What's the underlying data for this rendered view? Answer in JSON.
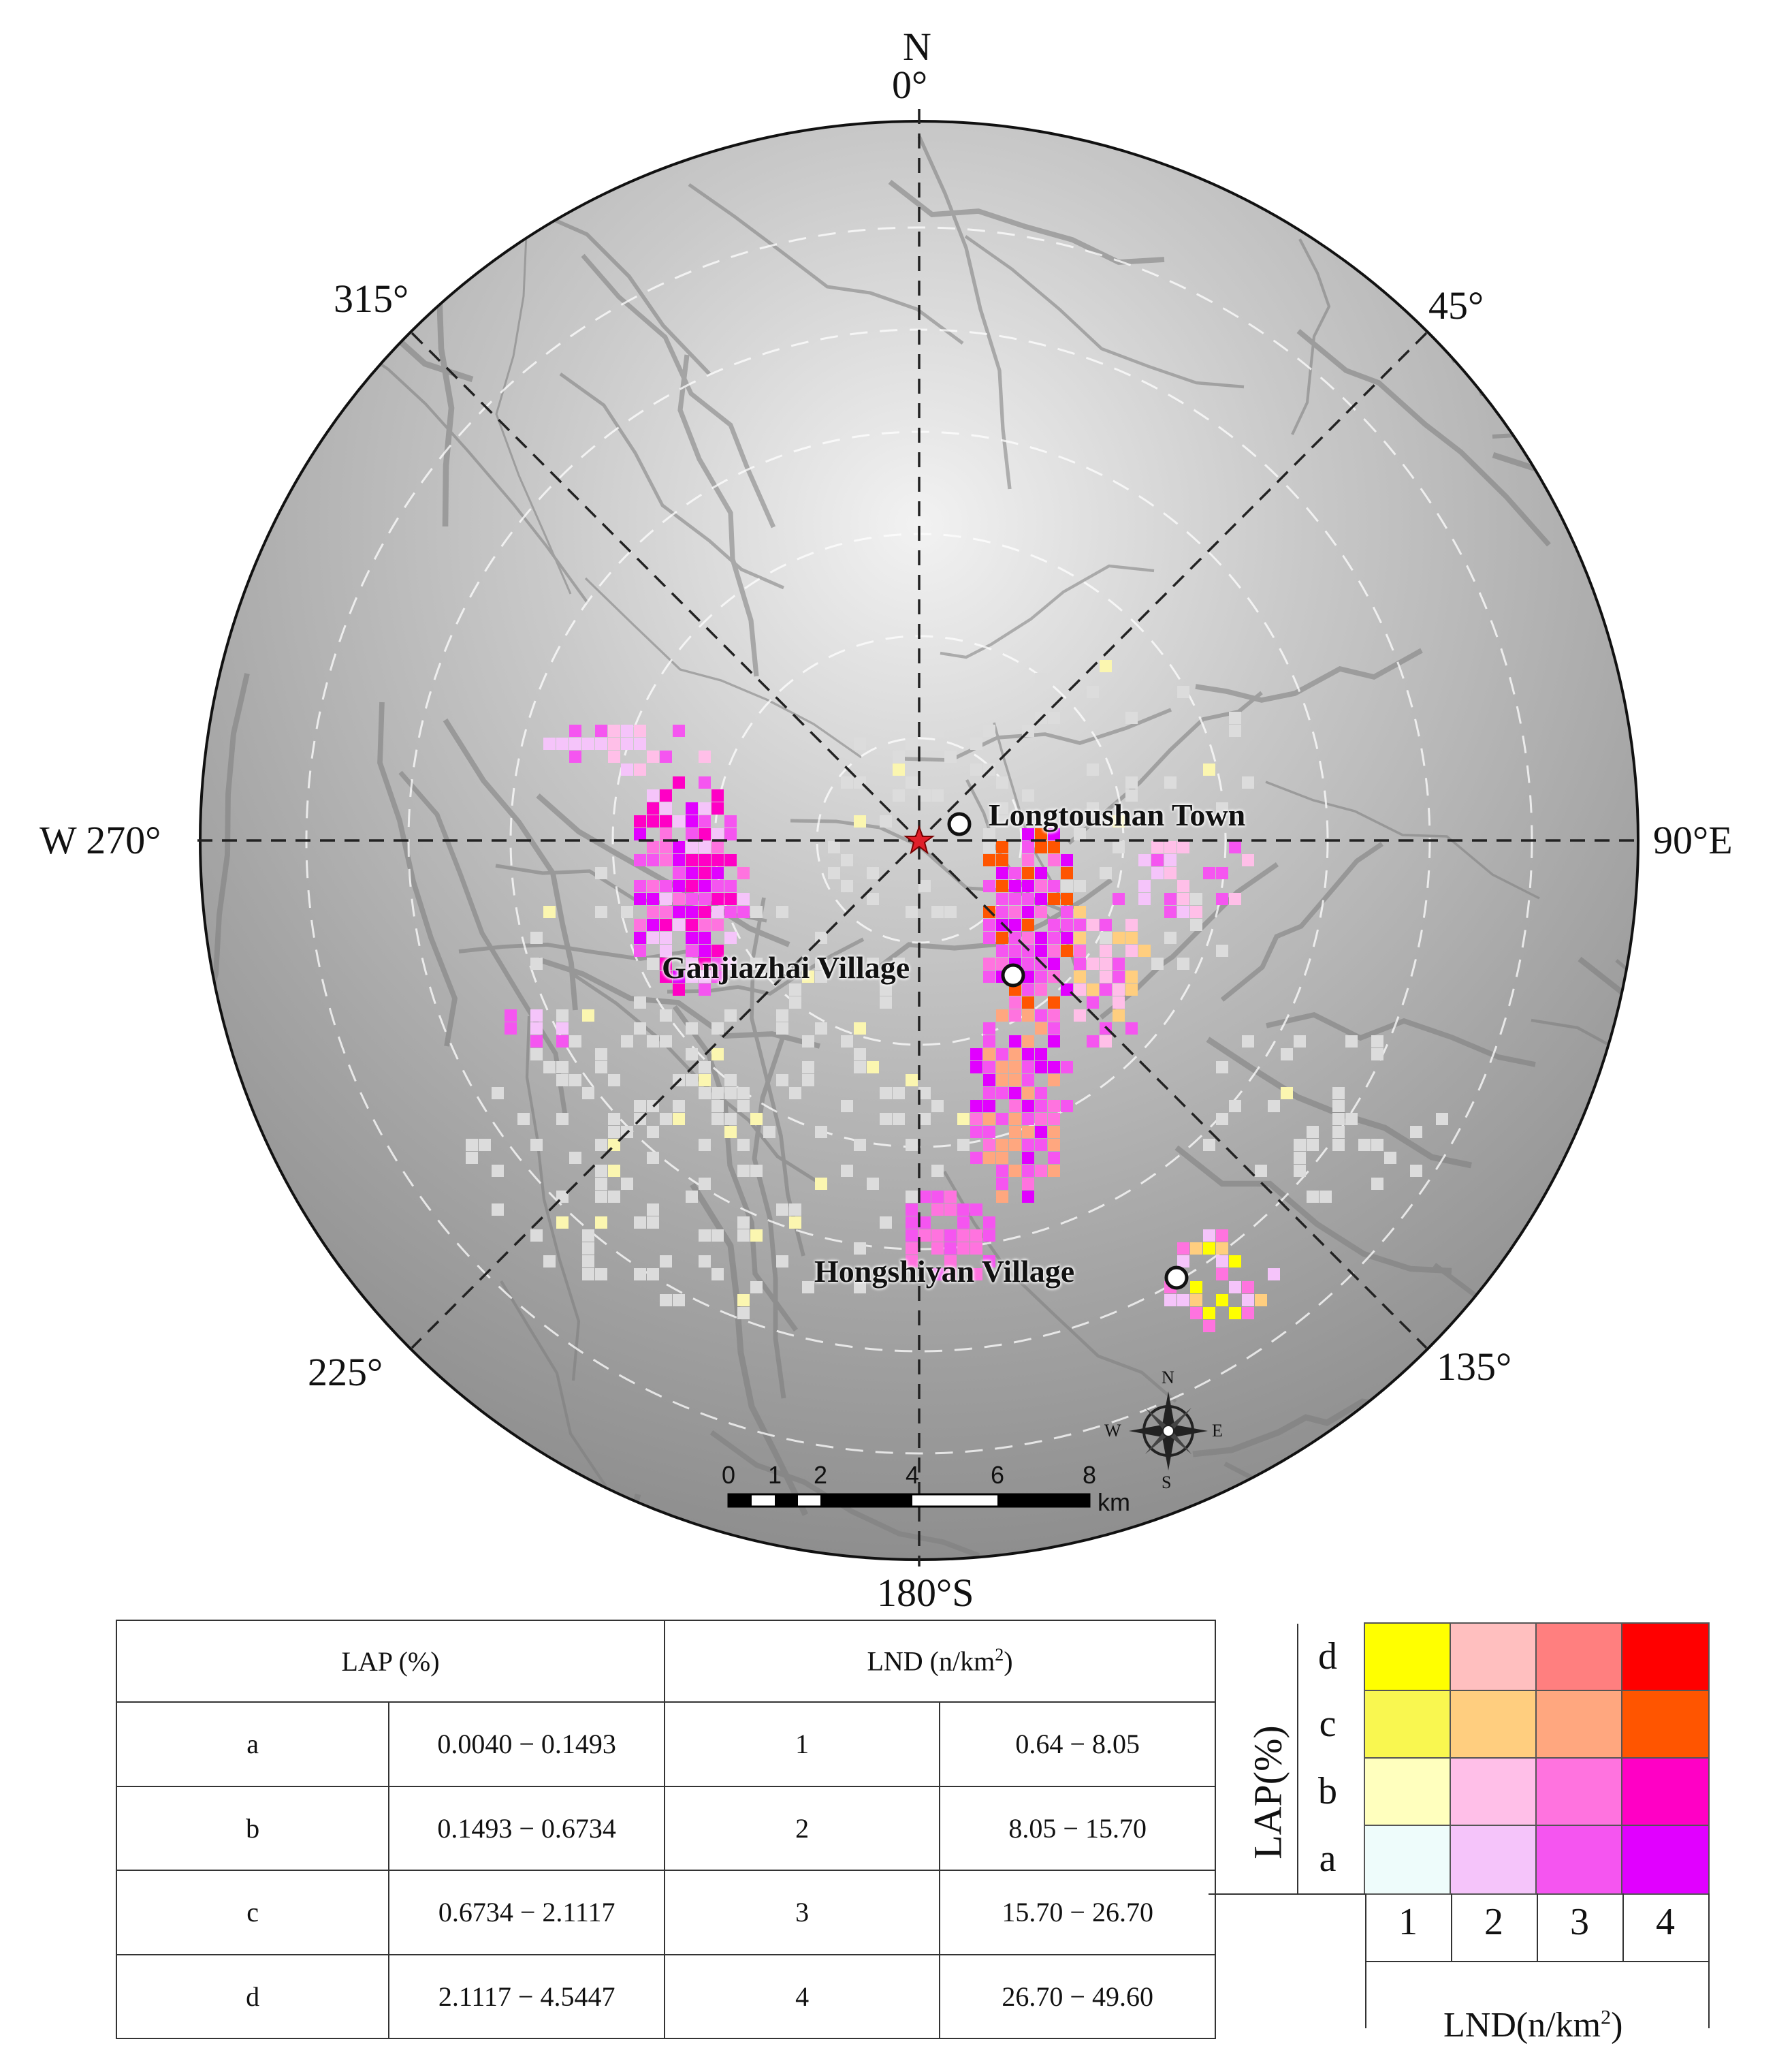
{
  "map": {
    "directions": {
      "north_letter": "N",
      "north_deg": "0°",
      "northeast": "45°",
      "east": "90°E",
      "southeast": "135°",
      "south": "180°S",
      "southwest": "225°",
      "west": "W 270°",
      "northwest": "315°"
    },
    "places": [
      {
        "name": "Longtoushan Town",
        "symbol": "white-circle"
      },
      {
        "name": "Ganjiazhai Village",
        "symbol": "white-circle"
      },
      {
        "name": "Hongshiyan Village",
        "symbol": "white-circle"
      }
    ],
    "epicenter_icon": "red-star-icon",
    "compass": {
      "N": "N",
      "E": "E",
      "S": "S",
      "W": "W",
      "icon": "compass-rose-icon"
    },
    "scale_bar": {
      "ticks": [
        "0",
        "1",
        "2",
        "4",
        "6",
        "8"
      ],
      "unit": "km"
    },
    "colors": {
      "circle_border": "#111111",
      "axis_lines": "#222222",
      "star": "#e0202a"
    }
  },
  "class_table": {
    "lap_header": "LAP (%)",
    "lnd_header": "LND (n/km²)",
    "rows": [
      {
        "lap_class": "a",
        "lap_range": "0.0040 − 0.1493",
        "lnd_class": "1",
        "lnd_range": "0.64 − 8.05"
      },
      {
        "lap_class": "b",
        "lap_range": "0.1493 − 0.6734",
        "lnd_class": "2",
        "lnd_range": "8.05 − 15.70"
      },
      {
        "lap_class": "c",
        "lap_range": "0.6734 − 2.1117",
        "lnd_class": "3",
        "lnd_range": "15.70 − 26.70"
      },
      {
        "lap_class": "d",
        "lap_range": "2.1117 − 4.5447",
        "lnd_class": "4",
        "lnd_range": "26.70 − 49.60"
      }
    ]
  },
  "bivariate_legend": {
    "y_title": "LAP(%)",
    "x_title": "LND(n/km²)",
    "rows": [
      "d",
      "c",
      "b",
      "a"
    ],
    "cols": [
      "1",
      "2",
      "3",
      "4"
    ],
    "colors": [
      [
        "#ffff00",
        "#ffbfbf",
        "#ff7f7f",
        "#ff0000"
      ],
      [
        "#f9f750",
        "#ffce7f",
        "#ffa77f",
        "#ff5500"
      ],
      [
        "#ffffbe",
        "#ffbfe8",
        "#ff73df",
        "#ff00c5"
      ],
      [
        "#eefcfb",
        "#f5c4fa",
        "#f555f0",
        "#e100ff"
      ]
    ]
  }
}
